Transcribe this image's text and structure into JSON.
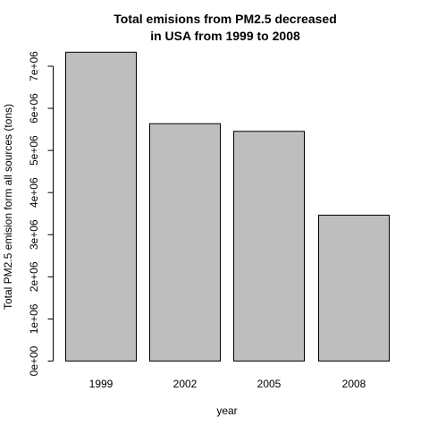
{
  "chart_data": {
    "type": "bar",
    "title": "Total emisions from PM2.5 decreased\nin USA from 1999 to 2008",
    "title_lines": [
      "Total emisions from PM2.5 decreased",
      "in USA from 1999 to 2008"
    ],
    "xlabel": "year",
    "ylabel": "Total PM2.5 emision form all sources (tons)",
    "categories": [
      "1999",
      "2002",
      "2005",
      "2008"
    ],
    "values": [
      7332967,
      5635780,
      5454703,
      3464206
    ],
    "ylim": [
      0,
      7500000
    ],
    "y_ticks": [
      0,
      1000000,
      2000000,
      3000000,
      4000000,
      5000000,
      6000000,
      7000000
    ],
    "y_tick_labels": [
      "0e+00",
      "1e+06",
      "2e+06",
      "3e+06",
      "4e+06",
      "5e+06",
      "6e+06",
      "7e+06"
    ],
    "grid": false,
    "legend": "none",
    "bar_fill": "#bebebe",
    "bar_stroke": "#000000"
  }
}
